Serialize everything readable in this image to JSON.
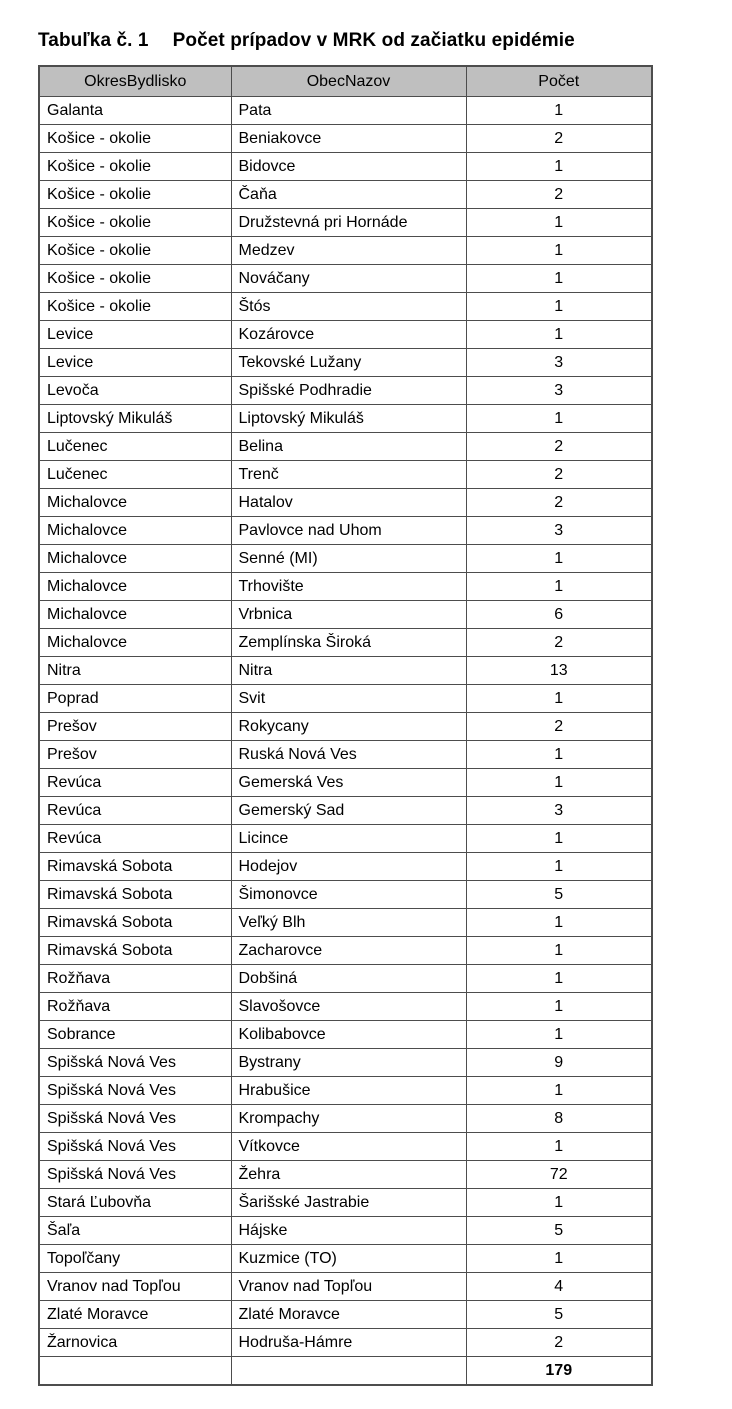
{
  "title": {
    "number": "Tabuľka č. 1",
    "text": "Počet prípadov v MRK od začiatku epidémie"
  },
  "colors": {
    "header_bg": "#bfbfbf",
    "border": "#4d4d4d",
    "text": "#000000"
  },
  "table": {
    "headers": [
      "OkresBydlisko",
      "ObecNazov",
      "Počet"
    ],
    "rows": [
      [
        "Galanta",
        "Pata",
        "1"
      ],
      [
        "Košice - okolie",
        "Beniakovce",
        "2"
      ],
      [
        "Košice - okolie",
        "Bidovce",
        "1"
      ],
      [
        "Košice - okolie",
        "Čaňa",
        "2"
      ],
      [
        "Košice - okolie",
        "Družstevná pri Hornáde",
        "1"
      ],
      [
        "Košice - okolie",
        "Medzev",
        "1"
      ],
      [
        "Košice - okolie",
        "Nováčany",
        "1"
      ],
      [
        "Košice - okolie",
        "Štós",
        "1"
      ],
      [
        "Levice",
        "Kozárovce",
        "1"
      ],
      [
        "Levice",
        "Tekovské Lužany",
        "3"
      ],
      [
        "Levoča",
        "Spišské Podhradie",
        "3"
      ],
      [
        "Liptovský Mikuláš",
        "Liptovský Mikuláš",
        "1"
      ],
      [
        "Lučenec",
        "Belina",
        "2"
      ],
      [
        "Lučenec",
        "Trenč",
        "2"
      ],
      [
        "Michalovce",
        "Hatalov",
        "2"
      ],
      [
        "Michalovce",
        "Pavlovce nad Uhom",
        "3"
      ],
      [
        "Michalovce",
        "Senné (MI)",
        "1"
      ],
      [
        "Michalovce",
        "Trhovište",
        "1"
      ],
      [
        "Michalovce",
        "Vrbnica",
        "6"
      ],
      [
        "Michalovce",
        "Zemplínska Široká",
        "2"
      ],
      [
        "Nitra",
        "Nitra",
        "13"
      ],
      [
        "Poprad",
        "Svit",
        "1"
      ],
      [
        "Prešov",
        "Rokycany",
        "2"
      ],
      [
        "Prešov",
        "Ruská Nová Ves",
        "1"
      ],
      [
        "Revúca",
        "Gemerská Ves",
        "1"
      ],
      [
        "Revúca",
        "Gemerský Sad",
        "3"
      ],
      [
        "Revúca",
        "Licince",
        "1"
      ],
      [
        "Rimavská Sobota",
        "Hodejov",
        "1"
      ],
      [
        "Rimavská Sobota",
        "Šimonovce",
        "5"
      ],
      [
        "Rimavská Sobota",
        "Veľký Blh",
        "1"
      ],
      [
        "Rimavská Sobota",
        "Zacharovce",
        "1"
      ],
      [
        "Rožňava",
        "Dobšiná",
        "1"
      ],
      [
        "Rožňava",
        "Slavošovce",
        "1"
      ],
      [
        "Sobrance",
        "Kolibabovce",
        "1"
      ],
      [
        "Spišská Nová Ves",
        "Bystrany",
        "9"
      ],
      [
        "Spišská Nová Ves",
        "Hrabušice",
        "1"
      ],
      [
        "Spišská Nová Ves",
        "Krompachy",
        "8"
      ],
      [
        "Spišská Nová Ves",
        "Vítkovce",
        "1"
      ],
      [
        "Spišská Nová Ves",
        "Žehra",
        "72"
      ],
      [
        "Stará Ľubovňa",
        "Šarišské Jastrabie",
        "1"
      ],
      [
        "Šaľa",
        "Hájske",
        "5"
      ],
      [
        "Topoľčany",
        "Kuzmice (TO)",
        "1"
      ],
      [
        "Vranov nad Topľou",
        "Vranov nad Topľou",
        "4"
      ],
      [
        "Zlaté Moravce",
        "Zlaté Moravce",
        "5"
      ],
      [
        "Žarnovica",
        "Hodruša-Hámre",
        "2"
      ]
    ],
    "total": "179"
  }
}
